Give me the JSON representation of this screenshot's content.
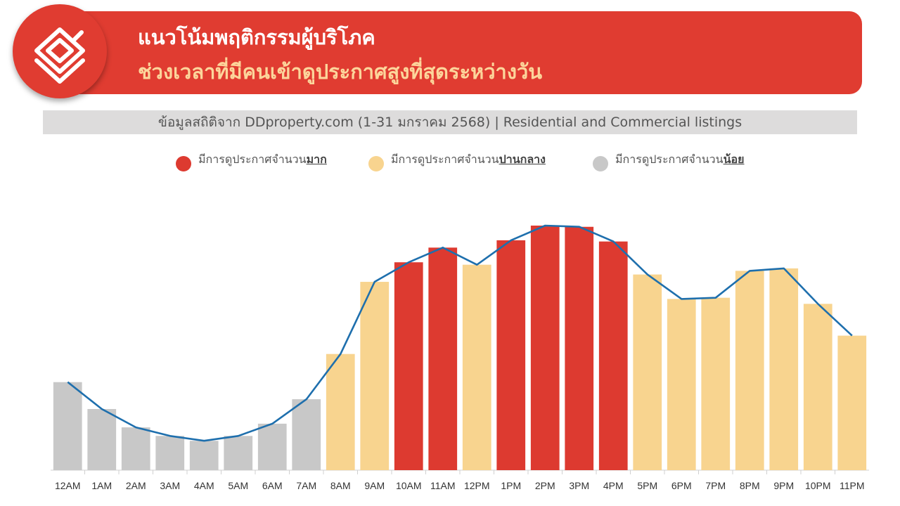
{
  "colors": {
    "brand_red": "#e03c31",
    "title_highlight": "#fcd59b",
    "high": "#dd3a30",
    "medium": "#f8d48f",
    "low": "#c8c8c8",
    "line": "#1e6fad"
  },
  "header": {
    "title": "แนวโน้มพฤติกรรมผู้บริโภค",
    "subtitle": "ช่วงเวลาที่มีคนเข้าดูประกาศสูงที่สุดระหว่างวัน",
    "logo_icon": "ddproperty-house-logo-icon"
  },
  "source": "ข้อมูลสถิติจาก DDproperty.com (1-31 มกราคม 2568) | Residential and Commercial listings",
  "legend": [
    {
      "prefix": "มีการดูประกาศจำนวน",
      "emphasis": "มาก",
      "level": "high"
    },
    {
      "prefix": "มีการดูประกาศจำนวน",
      "emphasis": "ปานกลาง",
      "level": "medium"
    },
    {
      "prefix": "มีการดูประกาศจำนวน",
      "emphasis": "น้อย",
      "level": "low"
    }
  ],
  "chart_data": {
    "type": "bar",
    "title": "",
    "xlabel": "",
    "ylabel": "",
    "y_axis_shown": false,
    "grid": false,
    "legend_position": "top",
    "ylim": [
      0,
      100
    ],
    "categories": [
      "12AM",
      "1AM",
      "2AM",
      "3AM",
      "4AM",
      "5AM",
      "6AM",
      "7AM",
      "8AM",
      "9AM",
      "10AM",
      "11AM",
      "12PM",
      "1PM",
      "2PM",
      "3PM",
      "4PM",
      "5PM",
      "6PM",
      "7PM",
      "8PM",
      "9PM",
      "10PM",
      "11PM"
    ],
    "values": [
      36,
      25,
      17.5,
      14,
      12,
      14,
      19,
      29,
      47.5,
      77,
      85,
      91,
      84,
      94,
      100,
      99.5,
      93.5,
      80,
      70,
      70.5,
      81.5,
      82.5,
      68,
      55
    ],
    "levels": [
      "low",
      "low",
      "low",
      "low",
      "low",
      "low",
      "low",
      "low",
      "medium",
      "medium",
      "high",
      "high",
      "medium",
      "high",
      "high",
      "high",
      "high",
      "medium",
      "medium",
      "medium",
      "medium",
      "medium",
      "medium",
      "medium"
    ],
    "trend_line": [
      36,
      25,
      17.5,
      14,
      12,
      14,
      19,
      29,
      47.5,
      77,
      85,
      91,
      84,
      94,
      100,
      99.5,
      93.5,
      80,
      70,
      70.5,
      81.5,
      82.5,
      68,
      55
    ]
  }
}
